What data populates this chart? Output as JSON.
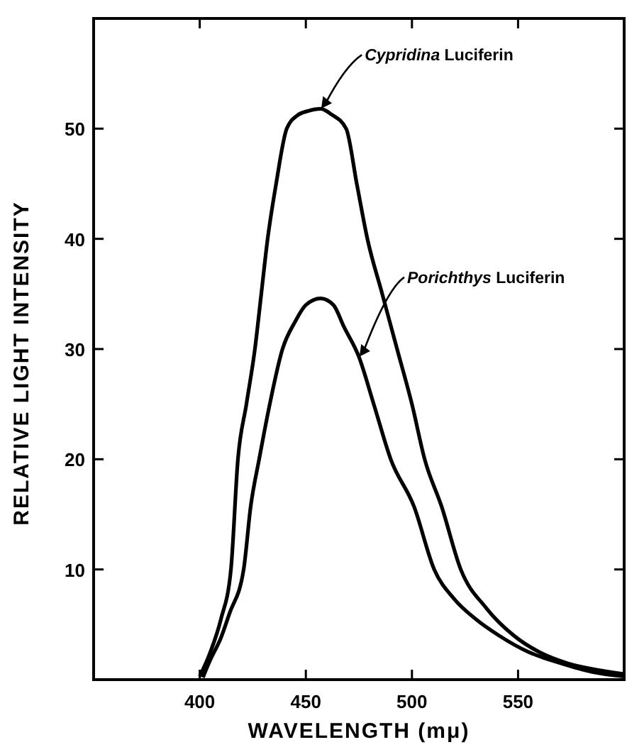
{
  "chart_data": {
    "type": "line",
    "xlabel": "WAVELENGTH (mμ)",
    "ylabel": "RELATIVE LIGHT INTENSITY",
    "xlim": [
      350,
      600
    ],
    "ylim": [
      0,
      60
    ],
    "xticks": [
      400,
      450,
      500,
      550
    ],
    "yticks": [
      10,
      20,
      30,
      40,
      50
    ],
    "grid": false,
    "marker": "none",
    "line_style": "solid",
    "series": [
      {
        "color": "#000000",
        "x": [
          400,
          405,
          410,
          414.7,
          418,
          422,
          426,
          429,
          432,
          436,
          441,
          446,
          451,
          457,
          462,
          469,
          474,
          479,
          486,
          493,
          500,
          506,
          514,
          523,
          535,
          548,
          560,
          573,
          590,
          600
        ],
        "values": [
          0.3,
          2.5,
          5.5,
          10,
          20,
          25,
          30,
          35,
          40,
          45,
          50,
          51.2,
          51.6,
          51.8,
          51.3,
          50,
          45,
          40,
          35,
          30,
          25,
          20,
          15.7,
          10,
          6.5,
          4,
          2.5,
          1.5,
          0.8,
          0.5
        ]
      },
      {
        "color": "#000000",
        "x": [
          401.5,
          405,
          410,
          414,
          420.7,
          424,
          428,
          433,
          439,
          445,
          450,
          457,
          463,
          468,
          475,
          482,
          490,
          501,
          510.5,
          520,
          530,
          541,
          555,
          570,
          585,
          600
        ],
        "values": [
          0.2,
          1.8,
          3.8,
          6,
          10,
          15.7,
          20,
          25,
          30,
          32.5,
          34,
          34.6,
          34,
          32,
          29.3,
          25,
          20,
          15.7,
          10,
          7.3,
          5.5,
          4,
          2.5,
          1.5,
          0.7,
          0.3
        ]
      }
    ],
    "annotations": [
      {
        "text": "Cypridina Luciferin",
        "x": 457,
        "y": 51.8
      },
      {
        "text": "Porichthys Luciferin",
        "x": 475,
        "y": 29.3
      }
    ]
  }
}
